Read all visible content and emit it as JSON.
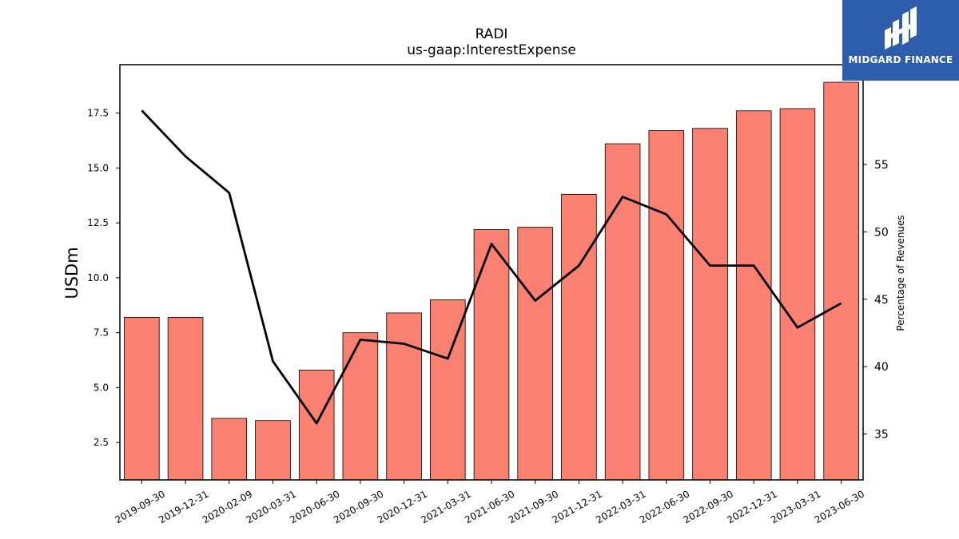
{
  "chart_data": {
    "type": "bar",
    "title": "RADI",
    "subtitle": "us-gaap:InterestExpense",
    "ylabel": "USDm",
    "y2label": "Percentage of Revenues",
    "categories": [
      "2019-09-30",
      "2019-12-31",
      "2020-02-09",
      "2020-03-31",
      "2020-06-30",
      "2020-09-30",
      "2020-12-31",
      "2021-03-31",
      "2021-06-30",
      "2021-09-30",
      "2021-12-31",
      "2022-03-31",
      "2022-06-30",
      "2022-09-30",
      "2022-12-31",
      "2023-03-31",
      "2023-06-30"
    ],
    "series": [
      {
        "type": "bar",
        "axis": "left",
        "color": "#fa8072",
        "values": [
          8.2,
          8.2,
          3.6,
          3.5,
          5.8,
          7.5,
          8.4,
          9.0,
          12.2,
          12.3,
          13.8,
          16.1,
          16.7,
          16.8,
          17.6,
          17.7,
          18.9
        ]
      },
      {
        "type": "line",
        "axis": "right",
        "color": "#000000",
        "values": [
          59.0,
          55.6,
          52.9,
          40.4,
          35.8,
          42.0,
          41.7,
          40.6,
          49.1,
          44.9,
          47.5,
          52.6,
          51.3,
          47.5,
          47.5,
          42.9,
          44.7
        ]
      }
    ],
    "ylim": [
      0.8,
      19.7
    ],
    "y2lim": [
      31.6,
      62.4
    ],
    "yticks": [
      "2.5",
      "5.0",
      "7.5",
      "10.0",
      "12.5",
      "15.0",
      "17.5"
    ],
    "y2ticks": [
      "35",
      "40",
      "45",
      "50",
      "55"
    ],
    "grid": false,
    "legend": "none"
  },
  "logo": {
    "text": "MIDGARD FINANCE",
    "background": "#2e5eab"
  }
}
